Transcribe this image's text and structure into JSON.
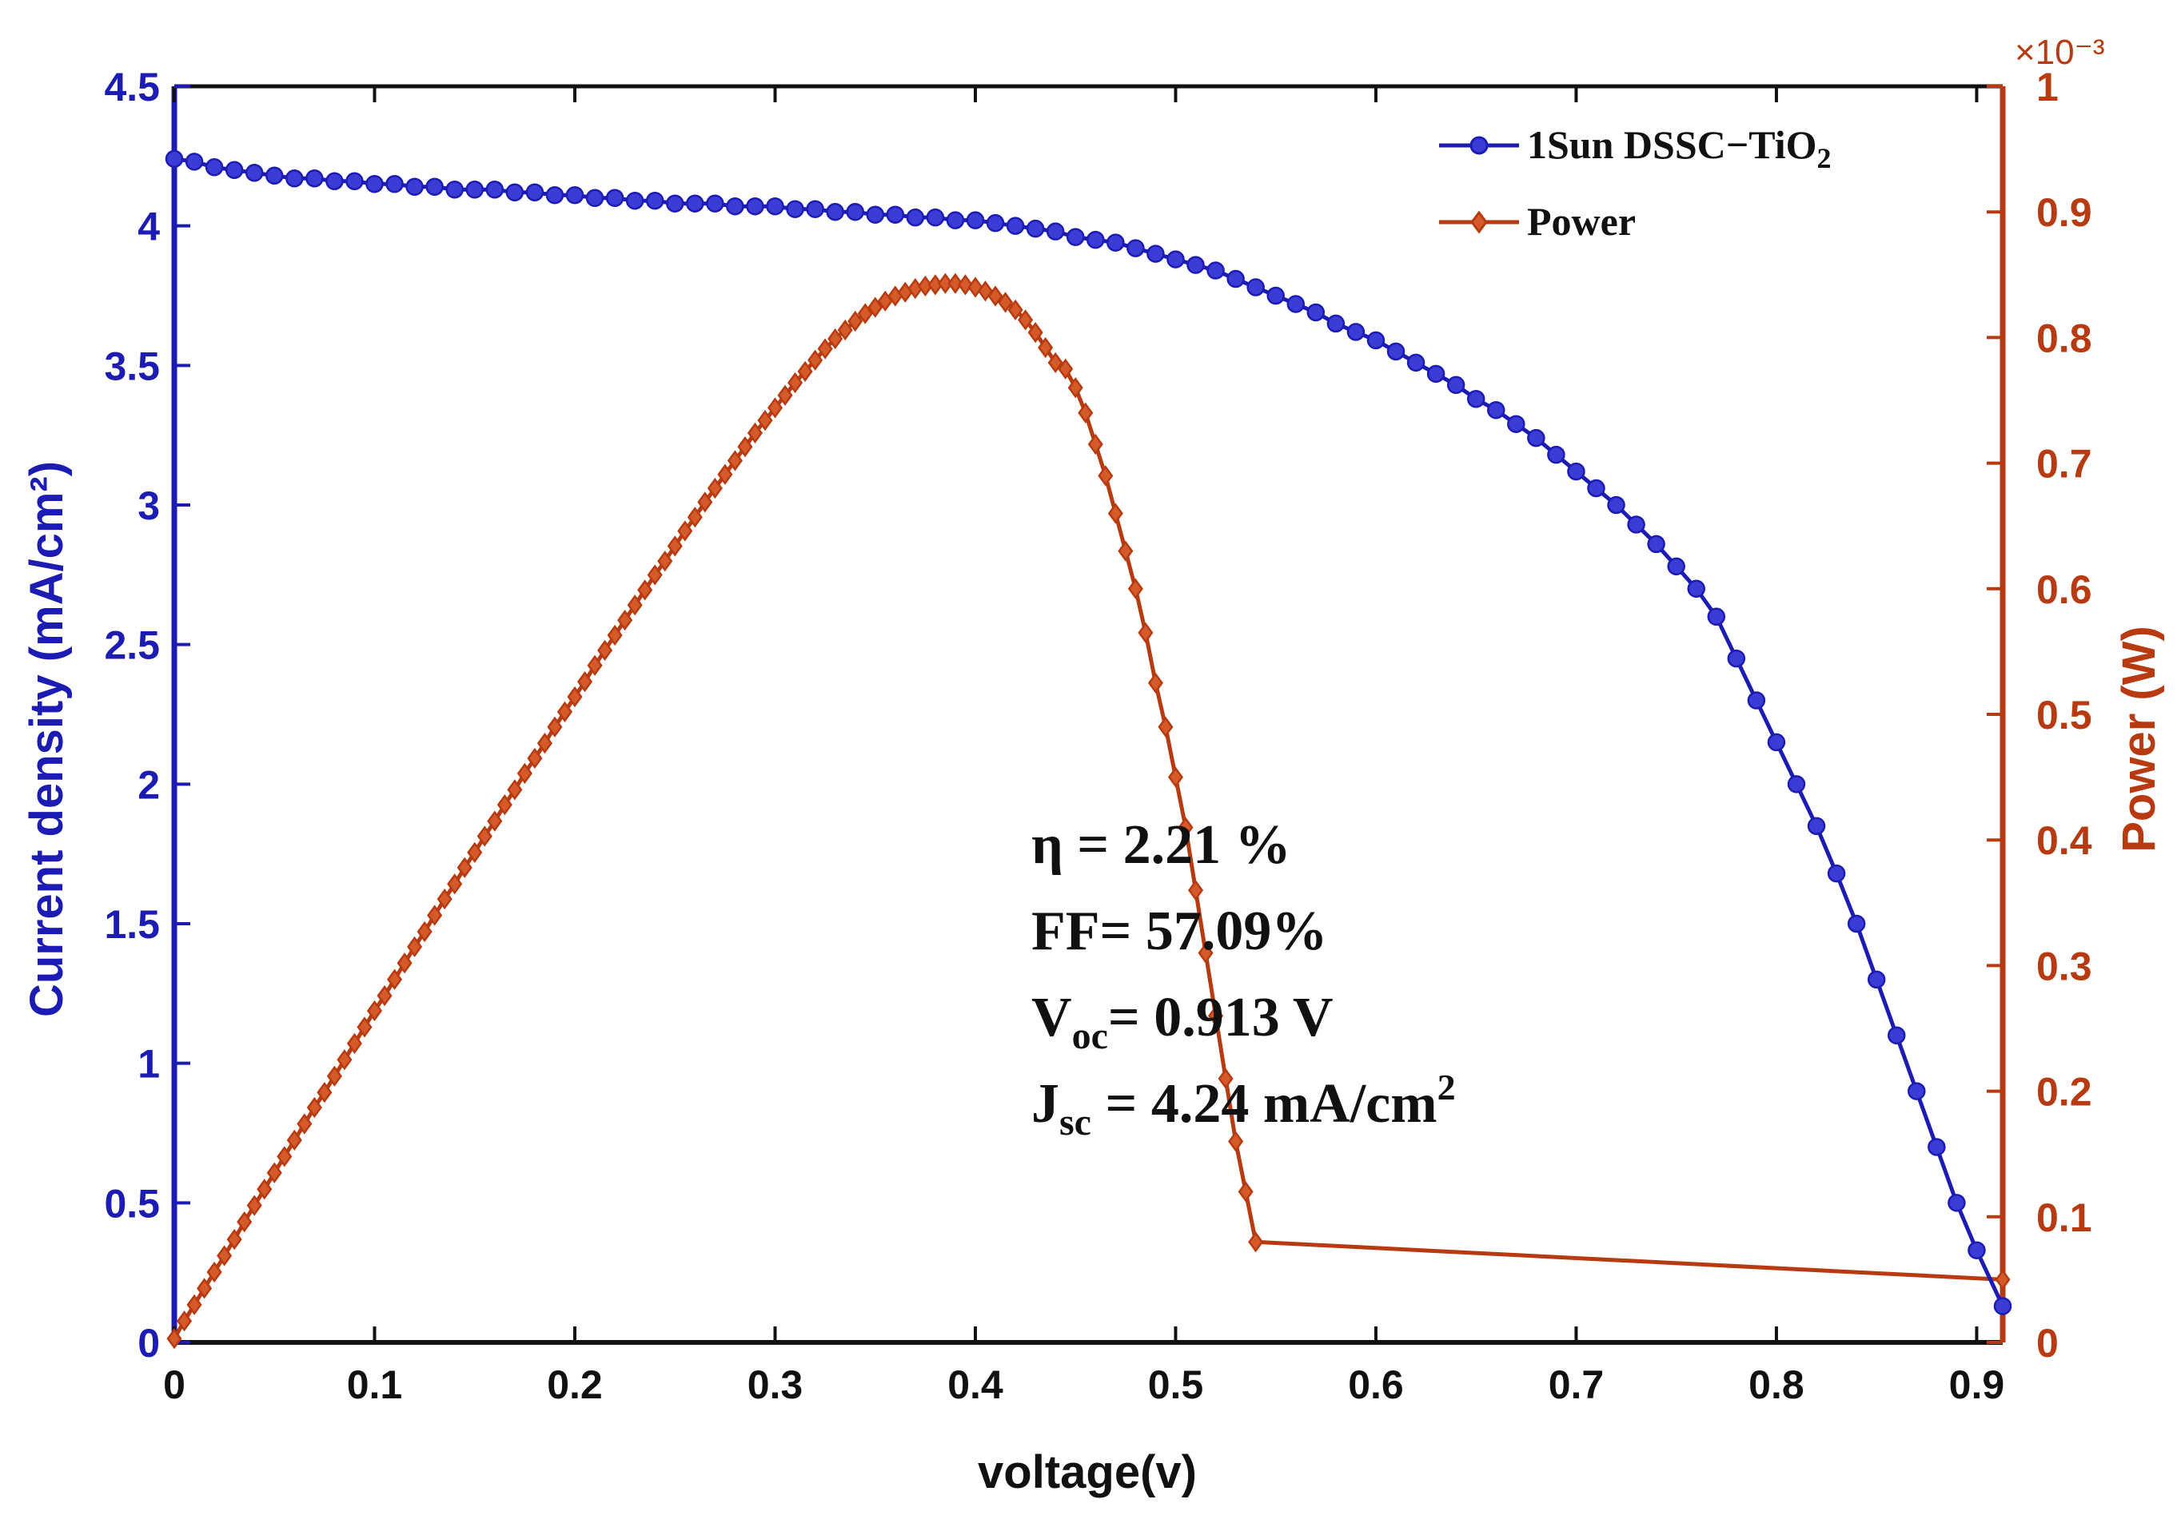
{
  "chart_data": {
    "type": "line",
    "xlabel": "voltage(v)",
    "ylabel_left": "Current density (mA/cm²)",
    "ylabel_right": "Power (W)",
    "right_axis_multiplier": "×10⁻³",
    "xlim": [
      0,
      0.913
    ],
    "ylim_left": [
      0,
      4.5
    ],
    "ylim_right": [
      0,
      1
    ],
    "x_ticks": [
      "0",
      "0.1",
      "0.2",
      "0.3",
      "0.4",
      "0.5",
      "0.6",
      "0.7",
      "0.8",
      "0.9"
    ],
    "y_left_ticks": [
      "0",
      "0.5",
      "1",
      "1.5",
      "2",
      "2.5",
      "3",
      "3.5",
      "4",
      "4.5"
    ],
    "y_right_ticks": [
      "0",
      "0.1",
      "0.2",
      "0.3",
      "0.4",
      "0.5",
      "0.6",
      "0.7",
      "0.8",
      "0.9",
      "1"
    ],
    "grid": false,
    "legend_position": "top-right",
    "legend": [
      {
        "label": "1Sun DSSC−TiO",
        "sub": "2",
        "color": "#1c1cb4",
        "marker": "circle"
      },
      {
        "label": "Power",
        "sub": "",
        "color": "#b83a10",
        "marker": "diamond"
      }
    ],
    "annotations": [
      {
        "main": "η = 2.21 %",
        "sub": "",
        "rest": "",
        "sup": ""
      },
      {
        "main": "FF=  57.09%",
        "sub": "",
        "rest": "",
        "sup": ""
      },
      {
        "main": "V",
        "sub": "oc",
        "rest": "= 0.913 V",
        "sup": ""
      },
      {
        "main": "J",
        "sub": "sc",
        "rest": " = 4.24 mA/cm",
        "sup": "2"
      }
    ],
    "series": [
      {
        "name": "1Sun DSSC−TiO2",
        "axis": "left",
        "color": "#1c1cb4",
        "marker": "circle",
        "x_step": 0.01,
        "x_last": 0.913,
        "x": [
          0,
          0.01,
          0.02,
          0.03,
          0.04,
          0.05,
          0.06,
          0.07,
          0.08,
          0.09,
          0.1,
          0.11,
          0.12,
          0.13,
          0.14,
          0.15,
          0.16,
          0.17,
          0.18,
          0.19,
          0.2,
          0.21,
          0.22,
          0.23,
          0.24,
          0.25,
          0.26,
          0.27,
          0.28,
          0.29,
          0.3,
          0.31,
          0.32,
          0.33,
          0.34,
          0.35,
          0.36,
          0.37,
          0.38,
          0.39,
          0.4,
          0.41,
          0.42,
          0.43,
          0.44,
          0.45,
          0.46,
          0.47,
          0.48,
          0.49,
          0.5,
          0.51,
          0.52,
          0.53,
          0.54,
          0.55,
          0.56,
          0.57,
          0.58,
          0.59,
          0.6,
          0.61,
          0.62,
          0.63,
          0.64,
          0.65,
          0.66,
          0.67,
          0.68,
          0.69,
          0.7,
          0.71,
          0.72,
          0.73,
          0.74,
          0.75,
          0.76,
          0.77,
          0.78,
          0.79,
          0.8,
          0.81,
          0.82,
          0.83,
          0.84,
          0.85,
          0.86,
          0.87,
          0.88,
          0.89,
          0.9,
          0.913
        ],
        "values": [
          4.24,
          4.23,
          4.21,
          4.2,
          4.19,
          4.18,
          4.17,
          4.17,
          4.16,
          4.16,
          4.15,
          4.15,
          4.14,
          4.14,
          4.13,
          4.13,
          4.13,
          4.12,
          4.12,
          4.11,
          4.11,
          4.1,
          4.1,
          4.09,
          4.09,
          4.08,
          4.08,
          4.08,
          4.07,
          4.07,
          4.07,
          4.06,
          4.06,
          4.05,
          4.05,
          4.04,
          4.04,
          4.03,
          4.03,
          4.02,
          4.02,
          4.01,
          4.0,
          3.99,
          3.98,
          3.96,
          3.95,
          3.94,
          3.92,
          3.9,
          3.88,
          3.86,
          3.84,
          3.81,
          3.78,
          3.75,
          3.72,
          3.69,
          3.65,
          3.62,
          3.59,
          3.55,
          3.51,
          3.47,
          3.43,
          3.38,
          3.34,
          3.29,
          3.24,
          3.18,
          3.12,
          3.06,
          3.0,
          2.93,
          2.86,
          2.78,
          2.7,
          2.6,
          2.45,
          2.3,
          2.15,
          2.0,
          1.85,
          1.68,
          1.5,
          1.3,
          1.1,
          0.9,
          0.7,
          0.5,
          0.33,
          0.13
        ]
      },
      {
        "name": "Power",
        "axis": "right",
        "color": "#b83a10",
        "marker": "diamond",
        "x_step": 0.005,
        "x_last": 0.913,
        "values": [
          0.003,
          0.017,
          0.03,
          0.043,
          0.056,
          0.069,
          0.082,
          0.096,
          0.109,
          0.122,
          0.135,
          0.148,
          0.161,
          0.174,
          0.187,
          0.199,
          0.212,
          0.225,
          0.238,
          0.251,
          0.264,
          0.276,
          0.289,
          0.302,
          0.315,
          0.327,
          0.34,
          0.353,
          0.365,
          0.378,
          0.39,
          0.403,
          0.415,
          0.428,
          0.44,
          0.453,
          0.465,
          0.477,
          0.49,
          0.502,
          0.514,
          0.526,
          0.539,
          0.551,
          0.563,
          0.575,
          0.587,
          0.599,
          0.611,
          0.622,
          0.634,
          0.646,
          0.657,
          0.669,
          0.68,
          0.691,
          0.702,
          0.713,
          0.724,
          0.734,
          0.744,
          0.754,
          0.764,
          0.773,
          0.782,
          0.791,
          0.799,
          0.806,
          0.813,
          0.819,
          0.824,
          0.829,
          0.833,
          0.836,
          0.839,
          0.841,
          0.842,
          0.843,
          0.843,
          0.842,
          0.84,
          0.837,
          0.833,
          0.828,
          0.822,
          0.814,
          0.804,
          0.792,
          0.78,
          0.775,
          0.76,
          0.74,
          0.715,
          0.69,
          0.66,
          0.63,
          0.6,
          0.565,
          0.525,
          0.49,
          0.45,
          0.41,
          0.36,
          0.31,
          0.26,
          0.21,
          0.16,
          0.12,
          0.08,
          0.05
        ]
      }
    ]
  }
}
